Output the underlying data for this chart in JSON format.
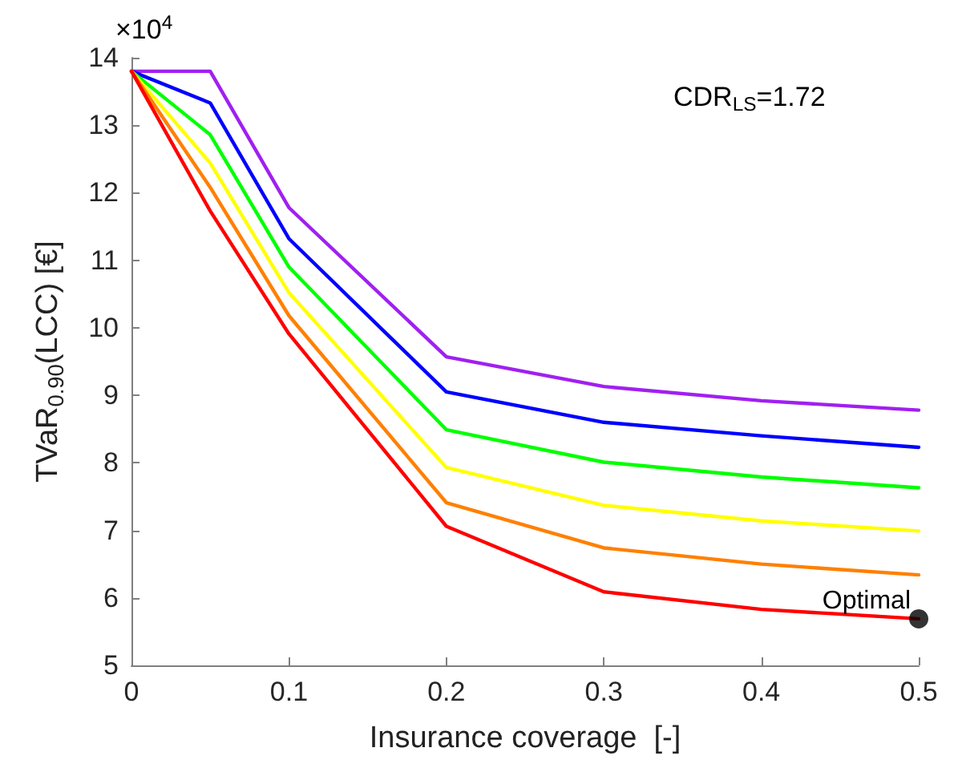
{
  "chart_data": {
    "type": "line",
    "xlabel": "Insurance coverage  [-]",
    "ylabel": "TVaR$_{0.90}$(LCC) [€]",
    "x": [
      0,
      0.05,
      0.1,
      0.2,
      0.3,
      0.4,
      0.5
    ],
    "series": [
      {
        "color": "#a020f0",
        "values": [
          13.8,
          13.8,
          11.78,
          9.57,
          9.13,
          8.92,
          8.78
        ]
      },
      {
        "color": "#0000ff",
        "values": [
          13.8,
          13.33,
          11.32,
          9.05,
          8.6,
          8.4,
          8.23
        ]
      },
      {
        "color": "#00ff00",
        "values": [
          13.8,
          12.86,
          10.9,
          8.49,
          8.01,
          7.79,
          7.63
        ]
      },
      {
        "color": "#ffff00",
        "values": [
          13.8,
          12.44,
          10.52,
          7.93,
          7.37,
          7.14,
          6.99
        ]
      },
      {
        "color": "#ff8000",
        "values": [
          13.8,
          12.08,
          10.18,
          7.41,
          6.74,
          6.5,
          6.34
        ]
      },
      {
        "color": "#ff0000",
        "values": [
          13.8,
          11.73,
          9.91,
          7.06,
          6.09,
          5.83,
          5.69
        ]
      },
      {
        "type": "scatter",
        "color": "#000000",
        "x": [
          0.5
        ],
        "values": [
          5.69
        ],
        "marker": "circle"
      }
    ],
    "xlim": [
      0,
      0.5
    ],
    "xticks": [
      0,
      0.1,
      0.2,
      0.3,
      0.4,
      0.5
    ],
    "ylim": [
      5,
      14
    ],
    "yticks": [
      5,
      6,
      7,
      8,
      9,
      10,
      11,
      12,
      13,
      14
    ],
    "annotations": [
      "×10$^{4}$",
      "CDR$_{LS}$=1.72",
      {
        "text": "Optimal",
        "x": 0.5,
        "y": 5.69
      }
    ],
    "grid": false,
    "marker": "none",
    "line_style": "solid"
  }
}
